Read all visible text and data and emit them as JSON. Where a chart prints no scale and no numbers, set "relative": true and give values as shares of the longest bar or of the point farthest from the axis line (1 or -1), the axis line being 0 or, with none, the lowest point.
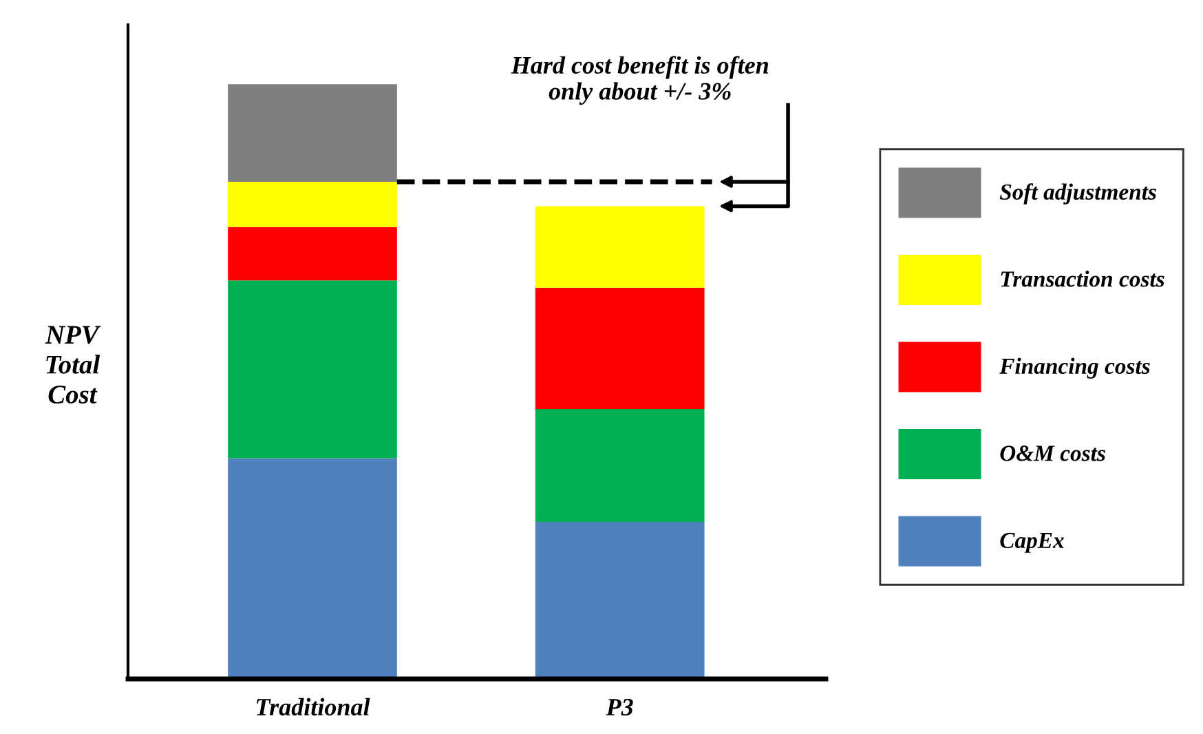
{
  "chart_data": {
    "type": "bar",
    "stacked": true,
    "relative": true,
    "ylabel": "NPV\nTotal\nCost",
    "categories": [
      "Traditional",
      "P3"
    ],
    "series": [
      {
        "name": "CapEx",
        "color": "#4f81bd",
        "values": [
          0.371,
          0.264
        ]
      },
      {
        "name": "O&M costs",
        "color": "#00b050",
        "values": [
          0.299,
          0.19
        ]
      },
      {
        "name": "Financing costs",
        "color": "#ff0000",
        "values": [
          0.09,
          0.204
        ]
      },
      {
        "name": "Transaction costs",
        "color": "#ffff00",
        "values": [
          0.076,
          0.137
        ]
      },
      {
        "name": "Soft adjustments",
        "color": "#7f7f7f",
        "values": [
          0.164,
          null
        ]
      }
    ],
    "annotations": [
      "Hard cost benefit is often\nonly about +/- 3%"
    ],
    "ref_lines": [
      {
        "axis": "y",
        "value": 0.836,
        "color": "#000000",
        "line_style": "dashed"
      }
    ],
    "legend": "right",
    "grid": false
  }
}
